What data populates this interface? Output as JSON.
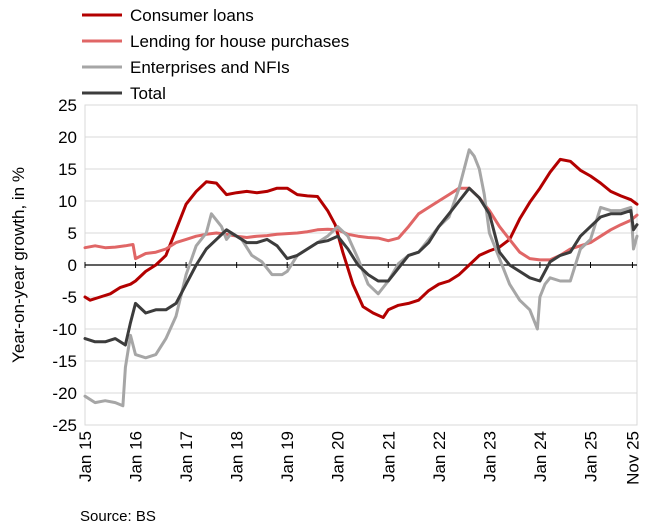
{
  "chart_data": {
    "type": "line",
    "title": "",
    "xlabel": "",
    "ylabel": "Year-on-year growth, in %",
    "ylim": [
      -25,
      25
    ],
    "yticks": [
      25,
      20,
      15,
      10,
      5,
      0,
      -5,
      -10,
      -15,
      -20,
      -25
    ],
    "xlim": [
      2015.0,
      2025.92
    ],
    "categories": [
      "Jan 15",
      "Jan 16",
      "Jan 17",
      "Jan 18",
      "Jan 19",
      "Jan 20",
      "Jan 21",
      "Jan 22",
      "Jan 23",
      "Jan 24",
      "Jan 25",
      "Nov 25"
    ],
    "category_x": [
      2015.0,
      2016.0,
      2017.0,
      2018.0,
      2019.0,
      2020.0,
      2021.0,
      2022.0,
      2023.0,
      2024.0,
      2025.0,
      2025.83
    ],
    "grid": true,
    "legend_position": "top-left",
    "source": "Source: BS",
    "series": [
      {
        "name": "Consumer loans",
        "color": "#b30000",
        "x": [
          2015.0,
          2015.1,
          2015.3,
          2015.5,
          2015.7,
          2015.9,
          2016.0,
          2016.2,
          2016.4,
          2016.6,
          2016.8,
          2017.0,
          2017.2,
          2017.4,
          2017.6,
          2017.8,
          2018.0,
          2018.2,
          2018.4,
          2018.6,
          2018.8,
          2019.0,
          2019.2,
          2019.4,
          2019.6,
          2019.8,
          2019.95,
          2020.1,
          2020.3,
          2020.5,
          2020.7,
          2020.9,
          2021.0,
          2021.2,
          2021.4,
          2021.6,
          2021.8,
          2022.0,
          2022.2,
          2022.4,
          2022.6,
          2022.8,
          2023.0,
          2023.2,
          2023.4,
          2023.6,
          2023.8,
          2024.0,
          2024.2,
          2024.4,
          2024.6,
          2024.8,
          2025.0,
          2025.2,
          2025.4,
          2025.6,
          2025.8,
          2025.92
        ],
        "values": [
          -5,
          -5.5,
          -5,
          -4.5,
          -3.5,
          -3,
          -2.5,
          -1,
          0,
          1.5,
          5.5,
          9.5,
          11.5,
          13,
          12.8,
          11,
          11.3,
          11.5,
          11.3,
          11.5,
          12,
          12,
          11,
          10.8,
          10.7,
          8.5,
          6.3,
          2,
          -3,
          -6.5,
          -7.5,
          -8.2,
          -7,
          -6.3,
          -6,
          -5.5,
          -4,
          -3,
          -2.5,
          -1.5,
          0,
          1.5,
          2.2,
          2.8,
          4,
          7.2,
          9.8,
          12,
          14.5,
          16.5,
          16.2,
          14.8,
          13.9,
          12.8,
          11.5,
          10.8,
          10.2,
          9.5
        ]
      },
      {
        "name": "Lending for house purchases",
        "color": "#e06666",
        "x": [
          2015.0,
          2015.2,
          2015.4,
          2015.6,
          2015.8,
          2015.95,
          2016.0,
          2016.2,
          2016.4,
          2016.6,
          2016.8,
          2017.0,
          2017.2,
          2017.4,
          2017.6,
          2017.8,
          2018.0,
          2018.2,
          2018.4,
          2018.6,
          2018.8,
          2019.0,
          2019.2,
          2019.4,
          2019.6,
          2019.8,
          2020.0,
          2020.2,
          2020.4,
          2020.6,
          2020.8,
          2021.0,
          2021.2,
          2021.4,
          2021.6,
          2021.8,
          2022.0,
          2022.2,
          2022.4,
          2022.6,
          2022.8,
          2023.0,
          2023.2,
          2023.4,
          2023.6,
          2023.8,
          2024.0,
          2024.2,
          2024.4,
          2024.6,
          2024.8,
          2025.0,
          2025.2,
          2025.4,
          2025.6,
          2025.8,
          2025.92
        ],
        "values": [
          2.7,
          3,
          2.7,
          2.8,
          3,
          3.2,
          1,
          1.8,
          2,
          2.5,
          3.5,
          4,
          4.5,
          4.8,
          5,
          4.8,
          4.5,
          4.3,
          4.5,
          4.6,
          4.8,
          4.9,
          5,
          5.2,
          5.5,
          5.6,
          5.5,
          4.8,
          4.5,
          4.3,
          4.2,
          3.8,
          4.2,
          6,
          8,
          9,
          10,
          11,
          12,
          12,
          10.5,
          8.5,
          6,
          4,
          2,
          1,
          0.8,
          0.8,
          1.5,
          2.5,
          3,
          3.5,
          4.5,
          5.5,
          6.3,
          7,
          7.8
        ]
      },
      {
        "name": "Enterprises and NFIs",
        "color": "#a6a6a6",
        "x": [
          2015.0,
          2015.2,
          2015.4,
          2015.6,
          2015.75,
          2015.8,
          2015.9,
          2016.0,
          2016.2,
          2016.4,
          2016.6,
          2016.8,
          2017.0,
          2017.2,
          2017.4,
          2017.5,
          2017.7,
          2017.8,
          2017.9,
          2018.1,
          2018.3,
          2018.5,
          2018.7,
          2018.9,
          2019.0,
          2019.2,
          2019.4,
          2019.6,
          2019.8,
          2020.0,
          2020.2,
          2020.4,
          2020.6,
          2020.8,
          2021.0,
          2021.2,
          2021.4,
          2021.6,
          2021.8,
          2022.0,
          2022.2,
          2022.4,
          2022.6,
          2022.7,
          2022.8,
          2022.9,
          2023.0,
          2023.2,
          2023.4,
          2023.6,
          2023.8,
          2023.95,
          2024.0,
          2024.1,
          2024.2,
          2024.4,
          2024.6,
          2024.8,
          2025.0,
          2025.2,
          2025.4,
          2025.6,
          2025.8,
          2025.85,
          2025.92
        ],
        "values": [
          -20.5,
          -21.5,
          -21.2,
          -21.5,
          -22,
          -16,
          -11,
          -14,
          -14.5,
          -14,
          -11.5,
          -8,
          -1.5,
          3,
          5,
          8,
          6,
          4,
          5,
          4,
          1.5,
          0.5,
          -1.5,
          -1.5,
          -1,
          1.5,
          2.5,
          3.5,
          4.5,
          6,
          4.5,
          1,
          -3,
          -4.5,
          -2.5,
          0.2,
          1.5,
          2,
          4,
          6,
          7.5,
          12,
          18,
          17,
          15,
          11,
          5,
          1,
          -3,
          -5.5,
          -7,
          -10,
          -5,
          -3,
          -2,
          -2.5,
          -2.5,
          2.5,
          4,
          9,
          8.5,
          8.5,
          9,
          2.5,
          4.5
        ]
      },
      {
        "name": "Total",
        "color": "#3c3c3c",
        "x": [
          2015.0,
          2015.2,
          2015.4,
          2015.6,
          2015.8,
          2015.9,
          2016.0,
          2016.2,
          2016.4,
          2016.6,
          2016.8,
          2017.0,
          2017.2,
          2017.4,
          2017.6,
          2017.8,
          2018.0,
          2018.2,
          2018.4,
          2018.6,
          2018.8,
          2019.0,
          2019.2,
          2019.4,
          2019.6,
          2019.8,
          2020.0,
          2020.2,
          2020.4,
          2020.6,
          2020.8,
          2021.0,
          2021.2,
          2021.4,
          2021.6,
          2021.8,
          2022.0,
          2022.2,
          2022.4,
          2022.6,
          2022.8,
          2023.0,
          2023.2,
          2023.4,
          2023.6,
          2023.8,
          2024.0,
          2024.2,
          2024.4,
          2024.6,
          2024.8,
          2025.0,
          2025.2,
          2025.4,
          2025.6,
          2025.8,
          2025.85,
          2025.92
        ],
        "values": [
          -11.5,
          -12,
          -12,
          -11.5,
          -12.5,
          -9,
          -6,
          -7.5,
          -7,
          -7,
          -6,
          -3,
          0,
          2.5,
          4,
          5.5,
          4.5,
          3.5,
          3.5,
          4,
          3,
          1,
          1.5,
          2.5,
          3.5,
          3.8,
          4.5,
          2.5,
          0,
          -1.5,
          -2.5,
          -2.5,
          -0.5,
          1.5,
          2,
          3.5,
          6,
          8,
          10,
          12,
          10.5,
          8,
          2,
          0,
          -1,
          -2,
          -2.5,
          0.5,
          1.5,
          2,
          4.5,
          6,
          7.5,
          8,
          8,
          8.5,
          5.5,
          6.3
        ]
      }
    ]
  }
}
